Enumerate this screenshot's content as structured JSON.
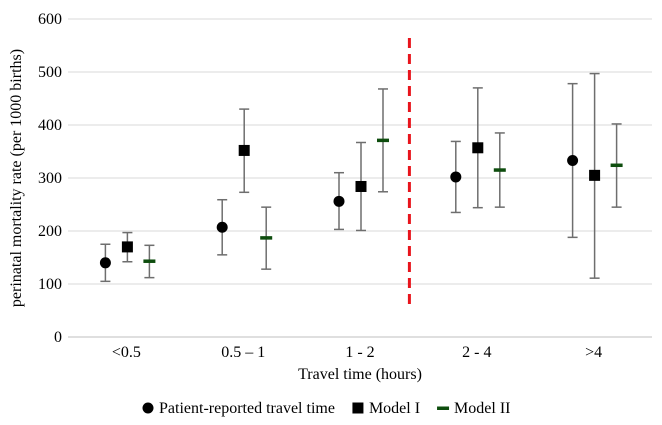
{
  "chart_data": {
    "type": "scatter",
    "title": "",
    "xlabel": "Travel time (hours)",
    "ylabel": "perinatal mortality rate (per 1000 births)",
    "categories": [
      "<0.5",
      "0.5 – 1",
      "1 - 2",
      "2 - 4",
      ">4"
    ],
    "ylim": [
      0,
      600
    ],
    "yticks": [
      0,
      100,
      200,
      300,
      400,
      500,
      600
    ],
    "grid": true,
    "legend_position": "bottom",
    "divider_after_category": "1 - 2",
    "divider_color": "#e8141c",
    "series": [
      {
        "name": "Patient-reported travel time",
        "marker": "circle",
        "color": "#000000",
        "values": [
          140,
          207,
          256,
          302,
          333
        ],
        "lower": [
          105,
          155,
          203,
          235,
          188
        ],
        "upper": [
          175,
          259,
          310,
          369,
          478
        ]
      },
      {
        "name": "Model I",
        "marker": "square",
        "color": "#000000",
        "values": [
          170,
          352,
          284,
          357,
          305
        ],
        "lower": [
          142,
          273,
          201,
          244,
          111
        ],
        "upper": [
          197,
          430,
          367,
          470,
          497
        ]
      },
      {
        "name": "Model II",
        "marker": "dash",
        "color": "#0e4d0e",
        "values": [
          143,
          187,
          371,
          315,
          324
        ],
        "lower": [
          112,
          128,
          274,
          245,
          245
        ],
        "upper": [
          173,
          245,
          468,
          385,
          402
        ]
      }
    ]
  }
}
